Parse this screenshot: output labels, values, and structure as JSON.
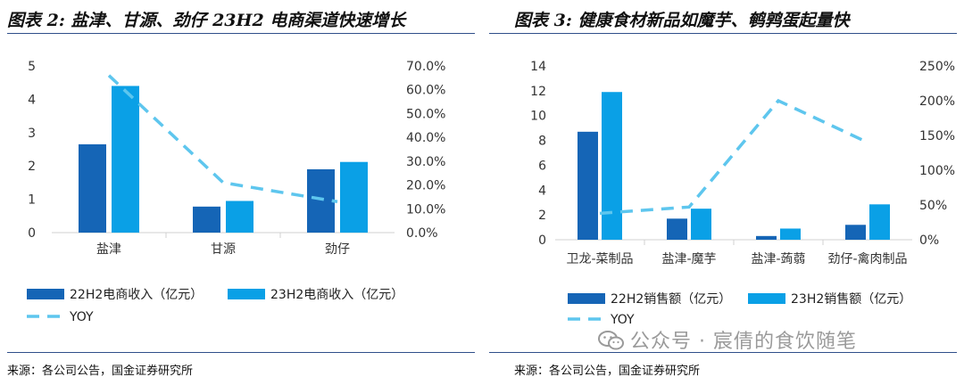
{
  "colors": {
    "series1": "#1565b6",
    "series2": "#0aa0e6",
    "yoy": "#5ec6ee",
    "rule": "#2f4f8a"
  },
  "left": {
    "title": "图表 2: 盐津、甘源、劲仔 23H2 电商渠道快速增长",
    "source": "来源：各公司公告，国金证券研究所"
  },
  "right": {
    "title": "图表 3: 健康食材新品如魔芋、鹌鹑蛋起量快",
    "source": "来源：各公司公告，国金证券研究所"
  },
  "watermark": {
    "text": "公众号 · 宸倩的食饮随笔",
    "icon": "wechat-icon"
  },
  "chart_data": [
    {
      "type": "bar",
      "categories": [
        "盐津",
        "甘源",
        "劲仔"
      ],
      "series": [
        {
          "name": "22H2电商收入（亿元）",
          "values": [
            2.65,
            0.78,
            1.9
          ]
        },
        {
          "name": "23H2电商收入（亿元）",
          "values": [
            4.4,
            0.95,
            2.12
          ]
        }
      ],
      "line_series": {
        "name": "YOY",
        "values": [
          0.66,
          0.21,
          0.13
        ],
        "style": "dashed",
        "axis": "right"
      },
      "ylim": [
        0,
        5
      ],
      "yticks": [
        "0",
        "1",
        "2",
        "3",
        "4",
        "5"
      ],
      "y2lim": [
        0,
        0.7
      ],
      "y2ticks": [
        "0.0%",
        "10.0%",
        "20.0%",
        "30.0%",
        "40.0%",
        "50.0%",
        "60.0%",
        "70.0%"
      ],
      "legend_position": "bottom"
    },
    {
      "type": "bar",
      "categories": [
        "卫龙-菜制品",
        "盐津-魔芋",
        "盐津-蒟蒻",
        "劲仔-禽肉制品"
      ],
      "series": [
        {
          "name": "22H2销售额（亿元）",
          "values": [
            8.7,
            1.7,
            0.3,
            1.2
          ]
        },
        {
          "name": "23H2销售额（亿元）",
          "values": [
            11.9,
            2.5,
            0.9,
            2.85
          ]
        }
      ],
      "line_series": {
        "name": "YOY",
        "values": [
          0.38,
          0.47,
          2.0,
          1.4
        ],
        "style": "dashed",
        "axis": "right"
      },
      "ylim": [
        0,
        14
      ],
      "yticks": [
        "0",
        "2",
        "4",
        "6",
        "8",
        "10",
        "12",
        "14"
      ],
      "y2lim": [
        0,
        2.5
      ],
      "y2ticks": [
        "0%",
        "50%",
        "100%",
        "150%",
        "200%",
        "250%"
      ],
      "legend_position": "bottom"
    }
  ]
}
